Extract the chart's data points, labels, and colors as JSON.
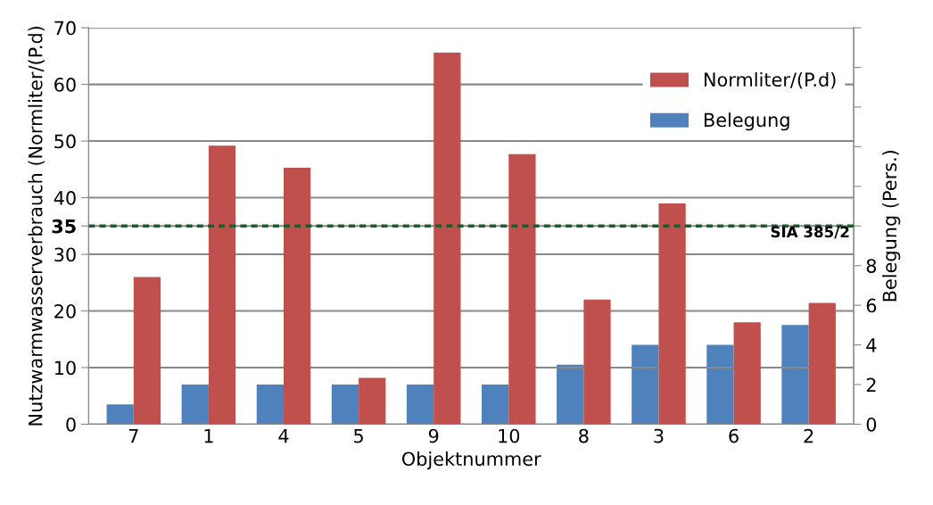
{
  "chart_data": {
    "type": "bar",
    "xlabel": "Objektnummer",
    "ylabel": "Nutzwarmwasserverbrauch (Normliter/(P.d)",
    "y2label": "Belegung (Pers.)",
    "categories": [
      "7",
      "1",
      "4",
      "5",
      "9",
      "10",
      "8",
      "3",
      "6",
      "2"
    ],
    "series": [
      {
        "name": "Belegung",
        "color": "#4f81bd",
        "axis": "y2",
        "values": [
          1,
          2,
          2,
          2,
          2,
          2,
          3,
          4,
          4,
          5
        ]
      },
      {
        "name": "Normliter/(P.d)",
        "color": "#c0504d",
        "values": [
          26,
          49.2,
          45.3,
          8.2,
          65.6,
          47.7,
          22,
          39,
          18,
          21.4
        ]
      }
    ],
    "ylim": [
      0,
      70
    ],
    "yticks": [
      0,
      10,
      20,
      30,
      35,
      40,
      50,
      60,
      70
    ],
    "y2lim": [
      0,
      20
    ],
    "y2ticks": [
      0,
      2,
      4,
      6,
      8,
      {
        "value": 10,
        "label": null
      },
      {
        "value": 12,
        "label": null
      },
      {
        "value": 14,
        "label": null
      },
      {
        "value": 16,
        "label": null
      },
      {
        "value": 18,
        "label": null
      },
      {
        "value": 20,
        "label": null
      }
    ],
    "ref_lines": [
      {
        "axis": "y",
        "value": 35,
        "label": "SIA 385/2",
        "color": "#1e5a2e",
        "line_style": "dotted"
      }
    ],
    "grid": "y",
    "legend": "top right"
  }
}
